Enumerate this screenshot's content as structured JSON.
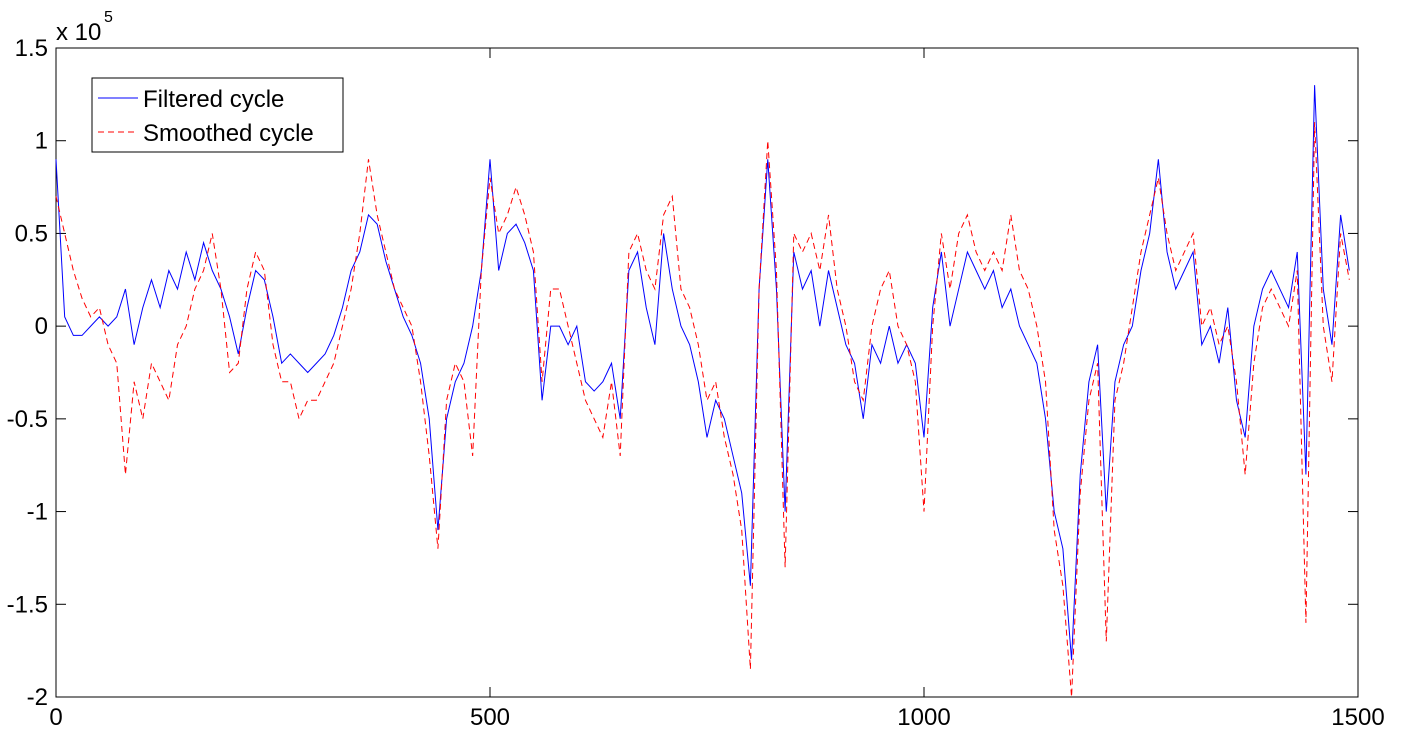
{
  "chart_data": {
    "type": "line",
    "y_multiplier": "x 10",
    "y_multiplier_exponent": "5",
    "x": [
      0,
      10,
      20,
      30,
      40,
      50,
      60,
      70,
      80,
      90,
      100,
      110,
      120,
      130,
      140,
      150,
      160,
      170,
      180,
      190,
      200,
      210,
      220,
      230,
      240,
      250,
      260,
      270,
      280,
      290,
      300,
      310,
      320,
      330,
      340,
      350,
      360,
      370,
      380,
      390,
      400,
      410,
      420,
      430,
      440,
      450,
      460,
      470,
      480,
      490,
      500,
      510,
      520,
      530,
      540,
      550,
      560,
      570,
      580,
      590,
      600,
      610,
      620,
      630,
      640,
      650,
      660,
      670,
      680,
      690,
      700,
      710,
      720,
      730,
      740,
      750,
      760,
      770,
      780,
      790,
      800,
      810,
      820,
      830,
      840,
      850,
      860,
      870,
      880,
      890,
      900,
      910,
      920,
      930,
      940,
      950,
      960,
      970,
      980,
      990,
      1000,
      1010,
      1020,
      1030,
      1040,
      1050,
      1060,
      1070,
      1080,
      1090,
      1100,
      1110,
      1120,
      1130,
      1140,
      1150,
      1160,
      1170,
      1180,
      1190,
      1200,
      1210,
      1220,
      1230,
      1240,
      1250,
      1260,
      1270,
      1280,
      1290,
      1300,
      1310,
      1320,
      1330,
      1340,
      1350,
      1360,
      1370,
      1380,
      1390,
      1400,
      1410,
      1420,
      1430,
      1440,
      1450,
      1460,
      1470,
      1480,
      1490
    ],
    "series": [
      {
        "name": "Filtered cycle",
        "color": "#0000ff",
        "linestyle": "solid",
        "values": [
          90000,
          5000,
          -5000,
          -5000,
          0,
          5000,
          0,
          5000,
          20000,
          -10000,
          10000,
          25000,
          10000,
          30000,
          20000,
          40000,
          25000,
          45000,
          30000,
          20000,
          5000,
          -15000,
          10000,
          30000,
          25000,
          5000,
          -20000,
          -15000,
          -20000,
          -25000,
          -20000,
          -15000,
          -5000,
          10000,
          30000,
          40000,
          60000,
          55000,
          35000,
          20000,
          5000,
          -5000,
          -20000,
          -50000,
          -110000,
          -50000,
          -30000,
          -20000,
          0,
          30000,
          90000,
          30000,
          50000,
          55000,
          45000,
          30000,
          -40000,
          0,
          0,
          -10000,
          0,
          -30000,
          -35000,
          -30000,
          -20000,
          -50000,
          30000,
          40000,
          10000,
          -10000,
          50000,
          20000,
          0,
          -10000,
          -30000,
          -60000,
          -40000,
          -50000,
          -70000,
          -90000,
          -140000,
          20000,
          90000,
          20000,
          -100000,
          40000,
          20000,
          30000,
          0,
          30000,
          10000,
          -10000,
          -20000,
          -50000,
          -10000,
          -20000,
          0,
          -20000,
          -10000,
          -20000,
          -60000,
          10000,
          40000,
          0,
          20000,
          40000,
          30000,
          20000,
          30000,
          10000,
          20000,
          0,
          -10000,
          -20000,
          -50000,
          -100000,
          -120000,
          -180000,
          -80000,
          -30000,
          -10000,
          -100000,
          -30000,
          -10000,
          0,
          30000,
          50000,
          90000,
          40000,
          20000,
          30000,
          40000,
          -10000,
          0,
          -20000,
          10000,
          -40000,
          -60000,
          0,
          20000,
          30000,
          20000,
          10000,
          40000,
          -80000,
          130000,
          20000,
          -10000,
          60000,
          30000
        ]
      },
      {
        "name": "Smoothed cycle",
        "color": "#ff0000",
        "linestyle": "dashed",
        "values": [
          70000,
          50000,
          30000,
          15000,
          5000,
          10000,
          -10000,
          -20000,
          -80000,
          -30000,
          -50000,
          -20000,
          -30000,
          -40000,
          -10000,
          0,
          20000,
          30000,
          50000,
          20000,
          -25000,
          -20000,
          20000,
          40000,
          30000,
          -10000,
          -30000,
          -30000,
          -50000,
          -40000,
          -40000,
          -30000,
          -20000,
          0,
          20000,
          50000,
          90000,
          60000,
          40000,
          20000,
          10000,
          0,
          -30000,
          -70000,
          -120000,
          -40000,
          -20000,
          -30000,
          -70000,
          30000,
          80000,
          50000,
          60000,
          75000,
          60000,
          40000,
          -30000,
          20000,
          20000,
          0,
          -20000,
          -40000,
          -50000,
          -60000,
          -30000,
          -70000,
          40000,
          50000,
          30000,
          20000,
          60000,
          70000,
          20000,
          10000,
          -10000,
          -40000,
          -30000,
          -60000,
          -80000,
          -110000,
          -185000,
          20000,
          100000,
          30000,
          -130000,
          50000,
          40000,
          50000,
          30000,
          60000,
          20000,
          0,
          -30000,
          -40000,
          0,
          20000,
          30000,
          0,
          -10000,
          -30000,
          -100000,
          0,
          50000,
          20000,
          50000,
          60000,
          40000,
          30000,
          40000,
          30000,
          60000,
          30000,
          20000,
          0,
          -30000,
          -110000,
          -140000,
          -200000,
          -90000,
          -40000,
          -20000,
          -170000,
          -40000,
          -20000,
          10000,
          40000,
          60000,
          80000,
          50000,
          30000,
          40000,
          50000,
          0,
          10000,
          -10000,
          0,
          -30000,
          -80000,
          -20000,
          10000,
          20000,
          10000,
          0,
          30000,
          -160000,
          110000,
          0,
          -30000,
          50000,
          25000
        ]
      }
    ],
    "xlim": [
      0,
      1500
    ],
    "xticks": [
      0,
      500,
      1000,
      1500
    ],
    "ylim": [
      -200000,
      150000
    ],
    "yticks": [
      {
        "value": -200000,
        "label": "-2"
      },
      {
        "value": -150000,
        "label": "-1.5"
      },
      {
        "value": -100000,
        "label": "-1"
      },
      {
        "value": -50000,
        "label": "-0.5"
      },
      {
        "value": 0,
        "label": "0"
      },
      {
        "value": 50000,
        "label": "0.5"
      },
      {
        "value": 100000,
        "label": "1"
      },
      {
        "value": 150000,
        "label": "1.5"
      }
    ],
    "grid": false,
    "legend": "northwest"
  }
}
